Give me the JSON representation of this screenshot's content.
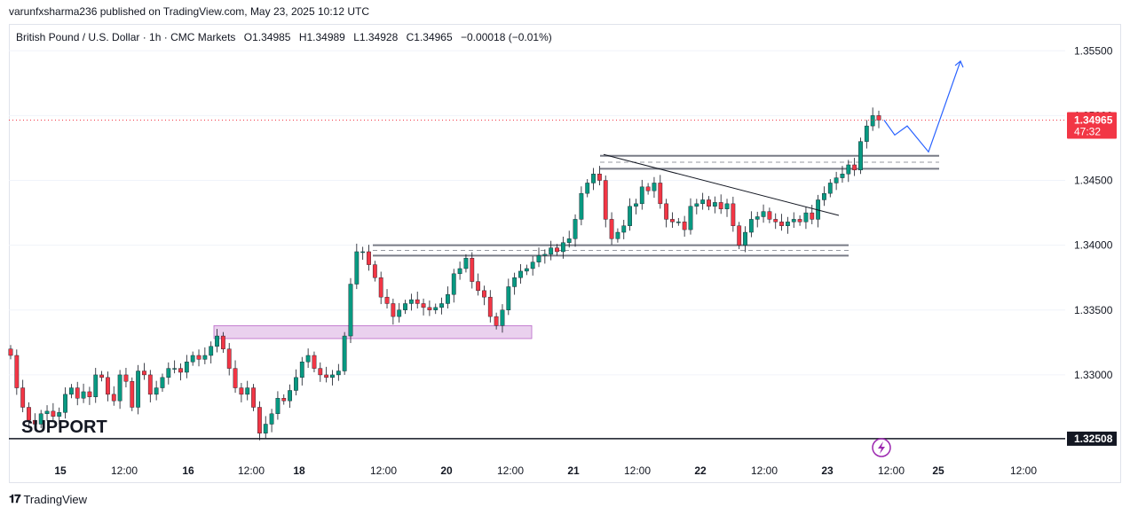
{
  "publisher_line": "varunfxsharma236 published on TradingView.com, May 23, 2025 10:12 UTC",
  "legend": {
    "symbol": "British Pound / U.S. Dollar · 1h · CMC Markets",
    "open": "O1.34985",
    "high": "H1.34989",
    "low": "L1.34928",
    "close": "C1.34965",
    "change": "−0.00018 (−0.01%)"
  },
  "support_label": "SUPPORT",
  "footer": {
    "brand": "TradingView"
  },
  "colors": {
    "up": "#089981",
    "down": "#f23645",
    "price_tag": "#f23645",
    "support_tag": "#131722",
    "zone": "#e1bee7",
    "forecast": "#2962ff"
  },
  "chart_data": {
    "type": "candlestick",
    "title": "British Pound / U.S. Dollar · 1h · CMC Markets",
    "xlabel": "",
    "ylabel": "",
    "ylim": [
      1.3235,
      1.357
    ],
    "y_ticks": [
      "1.35500",
      "1.35000",
      "1.34500",
      "1.34000",
      "1.33500",
      "1.33000"
    ],
    "x_ticks": [
      "15",
      "12:00",
      "16",
      "12:00",
      "18",
      "12:00",
      "20",
      "12:00",
      "21",
      "12:00",
      "22",
      "12:00",
      "23",
      "12:00",
      "25",
      "12:00"
    ],
    "last_price": "1.34965",
    "countdown": "47:32",
    "support_level": "1.32508",
    "support_value": 1.32508,
    "resistance_zone_top": [
      1.3469,
      1.3459
    ],
    "support_zone_mid": [
      1.34,
      1.3392
    ],
    "demand_zone": [
      1.3338,
      1.3328
    ],
    "descending_trendline": [
      1.347,
      1.3423
    ],
    "forecast_path": [
      1.34965,
      1.3485,
      1.3492,
      1.3472,
      1.3542
    ],
    "close_series": [
      1.3315,
      1.329,
      1.3275,
      1.3265,
      1.3262,
      1.327,
      1.3272,
      1.3268,
      1.3271,
      1.3285,
      1.329,
      1.3282,
      1.3287,
      1.3283,
      1.33,
      1.3298,
      1.3285,
      1.328,
      1.33,
      1.3295,
      1.3275,
      1.3303,
      1.33,
      1.3285,
      1.329,
      1.3298,
      1.3305,
      1.3305,
      1.3302,
      1.331,
      1.3315,
      1.3312,
      1.3315,
      1.3322,
      1.333,
      1.332,
      1.3305,
      1.329,
      1.3285,
      1.329,
      1.3275,
      1.3255,
      1.3262,
      1.327,
      1.3282,
      1.328,
      1.3288,
      1.3298,
      1.331,
      1.3315,
      1.3305,
      1.33,
      1.3298,
      1.33,
      1.3303,
      1.333,
      1.337,
      1.3395,
      1.3395,
      1.3385,
      1.3375,
      1.336,
      1.3355,
      1.3345,
      1.335,
      1.3355,
      1.3358,
      1.3355,
      1.3352,
      1.335,
      1.3352,
      1.3355,
      1.3362,
      1.3378,
      1.3382,
      1.339,
      1.3372,
      1.3365,
      1.336,
      1.3345,
      1.3338,
      1.335,
      1.3368,
      1.3375,
      1.338,
      1.3382,
      1.3387,
      1.3392,
      1.3393,
      1.3398,
      1.3395,
      1.3402,
      1.3405,
      1.342,
      1.344,
      1.3448,
      1.3455,
      1.345,
      1.342,
      1.3405,
      1.341,
      1.3415,
      1.343,
      1.3432,
      1.3445,
      1.3442,
      1.3448,
      1.3432,
      1.342,
      1.3418,
      1.3418,
      1.3412,
      1.343,
      1.3432,
      1.3435,
      1.343,
      1.3433,
      1.3428,
      1.3432,
      1.3415,
      1.34,
      1.341,
      1.342,
      1.3422,
      1.3426,
      1.342,
      1.3418,
      1.3415,
      1.3418,
      1.342,
      1.3418,
      1.3425,
      1.342,
      1.3435,
      1.344,
      1.3448,
      1.3452,
      1.3455,
      1.3462,
      1.3458,
      1.348,
      1.3492,
      1.35,
      1.34965
    ]
  }
}
